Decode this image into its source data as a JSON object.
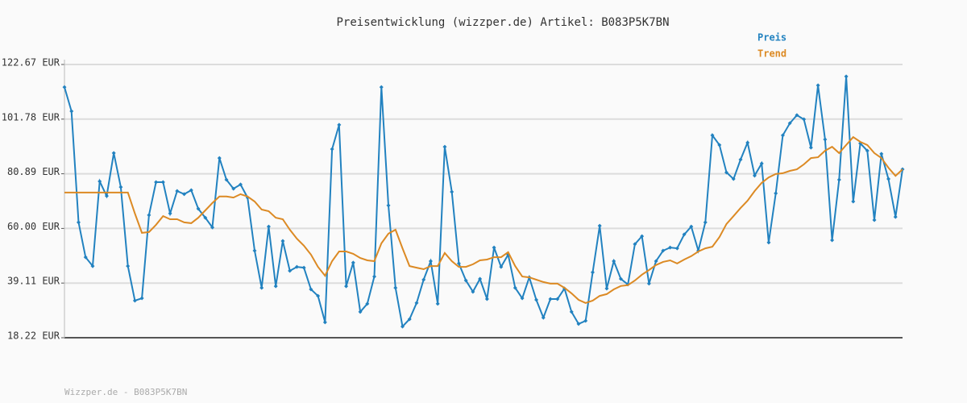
{
  "chart_data": {
    "type": "line",
    "title": "Preisentwicklung (wizzper.de) Artikel: B083P5K7BN",
    "footer": "Wizzper.de - B083P5K7BN",
    "ylim": [
      18.22,
      122.67
    ],
    "yticks": [
      {
        "value": 18.22,
        "label": "18.22 EUR"
      },
      {
        "value": 39.11,
        "label": "39.11 EUR"
      },
      {
        "value": 60.0,
        "label": "60.00 EUR"
      },
      {
        "value": 80.89,
        "label": "80.89 EUR"
      },
      {
        "value": 101.78,
        "label": "101.78 EUR"
      },
      {
        "value": 122.67,
        "label": "122.67 EUR"
      }
    ],
    "grid": true,
    "series": [
      {
        "name": "Preis",
        "color": "#2282c0",
        "markers": true,
        "values": [
          114.0,
          104.8,
          62.3,
          49.0,
          45.6,
          78.0,
          72.4,
          88.8,
          75.8,
          45.6,
          32.4,
          33.3,
          65.1,
          77.7,
          77.7,
          65.7,
          74.3,
          73.1,
          74.6,
          67.5,
          64.1,
          60.4,
          86.9,
          78.6,
          75.2,
          76.8,
          71.8,
          51.5,
          37.3,
          60.7,
          37.9,
          55.2,
          43.8,
          45.3,
          45.0,
          36.7,
          34.2,
          24.1,
          90.3,
          99.6,
          37.9,
          46.9,
          28.1,
          31.2,
          41.6,
          114.0,
          68.8,
          37.3,
          22.5,
          25.3,
          31.5,
          40.4,
          47.5,
          31.2,
          91.2,
          74.0,
          46.6,
          40.1,
          35.8,
          40.7,
          33.0,
          52.7,
          45.3,
          50.0,
          37.3,
          33.3,
          41.3,
          32.7,
          25.9,
          33.0,
          33.0,
          37.0,
          28.1,
          23.5,
          24.7,
          43.2,
          61.0,
          37.0,
          47.5,
          40.7,
          38.6,
          54.0,
          57.0,
          38.9,
          47.5,
          51.5,
          52.7,
          52.4,
          57.7,
          60.7,
          51.5,
          62.3,
          95.6,
          91.9,
          81.4,
          78.9,
          86.3,
          92.8,
          80.2,
          84.8,
          54.6,
          73.4,
          95.6,
          100.2,
          103.3,
          101.7,
          90.9,
          114.7,
          94.0,
          55.5,
          78.6,
          118.1,
          70.3,
          92.5,
          89.7,
          63.2,
          88.5,
          78.9,
          64.4,
          82.6
        ]
      },
      {
        "name": "Trend",
        "color": "#dc8a24",
        "markers": false,
        "values": [
          73.7,
          73.7,
          73.7,
          73.7,
          73.7,
          73.7,
          73.7,
          73.7,
          73.7,
          73.7,
          65.7,
          58.3,
          58.6,
          61.4,
          64.7,
          63.5,
          63.5,
          62.3,
          62.0,
          64.1,
          66.9,
          69.7,
          72.2,
          72.2,
          71.8,
          73.1,
          72.2,
          70.3,
          67.2,
          66.6,
          64.1,
          63.5,
          59.5,
          56.1,
          53.4,
          50.0,
          45.3,
          41.9,
          47.5,
          51.2,
          51.2,
          50.3,
          48.7,
          47.8,
          47.5,
          54.3,
          58.0,
          59.5,
          52.4,
          45.6,
          45.0,
          44.4,
          45.6,
          45.6,
          50.6,
          47.5,
          45.3,
          45.3,
          46.3,
          47.8,
          48.1,
          49.0,
          49.0,
          50.9,
          45.6,
          41.6,
          41.3,
          40.4,
          39.5,
          38.9,
          38.9,
          37.3,
          35.2,
          32.7,
          31.5,
          32.4,
          34.2,
          34.9,
          36.7,
          38.0,
          38.3,
          40.1,
          42.3,
          44.1,
          46.0,
          47.2,
          47.8,
          46.6,
          48.1,
          49.4,
          51.2,
          52.4,
          53.0,
          56.7,
          61.7,
          64.7,
          67.8,
          70.6,
          74.3,
          77.4,
          79.5,
          80.8,
          81.1,
          82.0,
          82.6,
          84.5,
          86.9,
          87.2,
          89.7,
          91.2,
          88.8,
          91.9,
          94.9,
          93.1,
          91.9,
          88.8,
          86.9,
          83.2,
          80.1,
          82.6
        ]
      }
    ]
  }
}
